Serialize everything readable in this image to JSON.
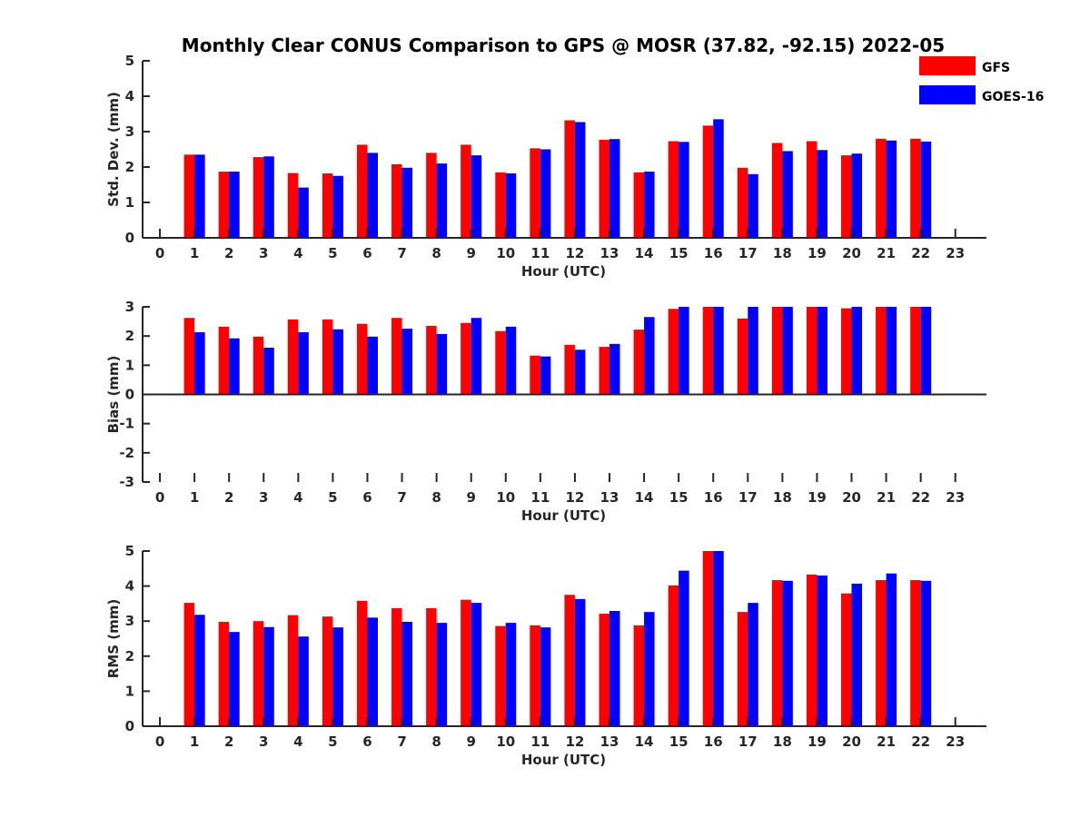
{
  "title": "Monthly Clear CONUS Comparison to GPS @ MOSR (37.82, -92.15) 2022-05",
  "legend": [
    {
      "name": "GFS",
      "color": "#ff0000"
    },
    {
      "name": "GOES-16",
      "color": "#0000ff"
    }
  ],
  "chart_data": [
    {
      "type": "bar",
      "xlabel": "Hour (UTC)",
      "ylabel": "Std. Dev. (mm)",
      "ylim": [
        0,
        5
      ],
      "yticks": [
        0,
        1,
        2,
        3,
        4,
        5
      ],
      "xticks": [
        0,
        1,
        2,
        3,
        4,
        5,
        6,
        7,
        8,
        9,
        10,
        11,
        12,
        13,
        14,
        15,
        16,
        17,
        18,
        19,
        20,
        21,
        22,
        23
      ],
      "categories": [
        1,
        2,
        3,
        4,
        5,
        6,
        7,
        8,
        9,
        10,
        11,
        12,
        13,
        14,
        15,
        16,
        17,
        18,
        19,
        20,
        21,
        22
      ],
      "series": [
        {
          "name": "GFS",
          "color": "#ff0000",
          "values": [
            2.35,
            1.87,
            2.28,
            1.83,
            1.82,
            2.63,
            2.08,
            2.4,
            2.63,
            1.85,
            2.53,
            3.32,
            2.77,
            1.85,
            2.73,
            3.17,
            1.98,
            2.68,
            2.73,
            2.33,
            2.8,
            2.8
          ]
        },
        {
          "name": "GOES-16",
          "color": "#0000ff",
          "values": [
            2.35,
            1.87,
            2.3,
            1.42,
            1.75,
            2.4,
            1.98,
            2.1,
            2.33,
            1.82,
            2.5,
            3.27,
            2.79,
            1.87,
            2.71,
            3.35,
            1.8,
            2.45,
            2.48,
            2.38,
            2.75,
            2.72
          ]
        }
      ]
    },
    {
      "type": "bar",
      "xlabel": "Hour (UTC)",
      "ylabel": "Bias (mm)",
      "ylim": [
        -3,
        3
      ],
      "yticks": [
        -3,
        -2,
        -1,
        0,
        1,
        2,
        3
      ],
      "xticks": [
        0,
        1,
        2,
        3,
        4,
        5,
        6,
        7,
        8,
        9,
        10,
        11,
        12,
        13,
        14,
        15,
        16,
        17,
        18,
        19,
        20,
        21,
        22,
        23
      ],
      "categories": [
        1,
        2,
        3,
        4,
        5,
        6,
        7,
        8,
        9,
        10,
        11,
        12,
        13,
        14,
        15,
        16,
        17,
        18,
        19,
        20,
        21,
        22
      ],
      "series": [
        {
          "name": "GFS",
          "color": "#ff0000",
          "values": [
            2.62,
            2.32,
            1.98,
            2.57,
            2.57,
            2.42,
            2.62,
            2.35,
            2.45,
            2.17,
            1.33,
            1.7,
            1.63,
            2.22,
            2.93,
            3.0,
            2.6,
            3.0,
            3.0,
            2.95,
            3.0,
            3.0
          ]
        },
        {
          "name": "GOES-16",
          "color": "#0000ff",
          "values": [
            2.13,
            1.92,
            1.6,
            2.13,
            2.23,
            1.98,
            2.25,
            2.07,
            2.62,
            2.32,
            1.3,
            1.53,
            1.73,
            2.65,
            3.0,
            3.0,
            3.0,
            3.0,
            3.0,
            3.0,
            3.0,
            3.0
          ]
        }
      ]
    },
    {
      "type": "bar",
      "xlabel": "Hour (UTC)",
      "ylabel": "RMS (mm)",
      "ylim": [
        0,
        5
      ],
      "yticks": [
        0,
        1,
        2,
        3,
        4,
        5
      ],
      "xticks": [
        0,
        1,
        2,
        3,
        4,
        5,
        6,
        7,
        8,
        9,
        10,
        11,
        12,
        13,
        14,
        15,
        16,
        17,
        18,
        19,
        20,
        21,
        22,
        23
      ],
      "categories": [
        1,
        2,
        3,
        4,
        5,
        6,
        7,
        8,
        9,
        10,
        11,
        12,
        13,
        14,
        15,
        16,
        17,
        18,
        19,
        20,
        21,
        22
      ],
      "series": [
        {
          "name": "GFS",
          "color": "#ff0000",
          "values": [
            3.52,
            2.98,
            3.0,
            3.17,
            3.13,
            3.58,
            3.37,
            3.37,
            3.61,
            2.86,
            2.88,
            3.75,
            3.21,
            2.88,
            4.02,
            5.0,
            3.26,
            4.17,
            4.33,
            3.79,
            4.17,
            4.17
          ]
        },
        {
          "name": "GOES-16",
          "color": "#0000ff",
          "values": [
            3.18,
            2.69,
            2.83,
            2.56,
            2.82,
            3.1,
            2.98,
            2.95,
            3.52,
            2.95,
            2.82,
            3.63,
            3.29,
            3.26,
            4.44,
            5.0,
            3.52,
            4.15,
            4.3,
            4.07,
            4.36,
            4.15
          ]
        }
      ]
    }
  ]
}
